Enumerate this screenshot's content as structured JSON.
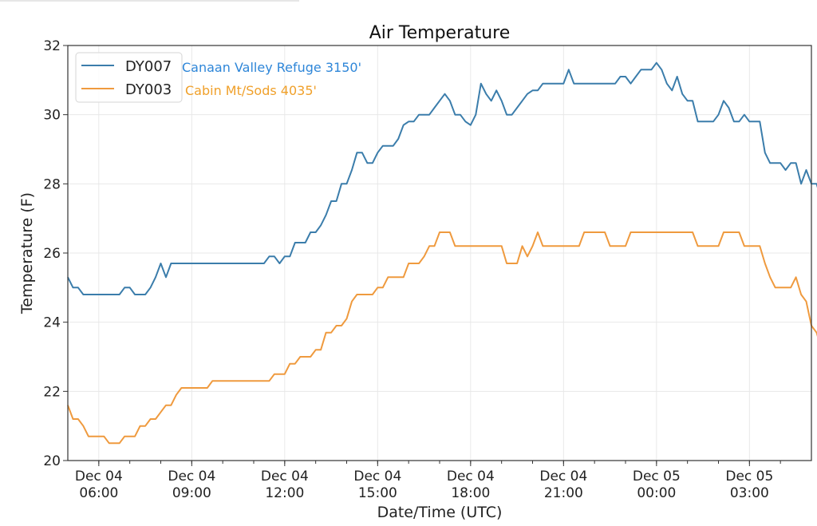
{
  "chart_data": {
    "type": "line",
    "title": "Air Temperature",
    "xlabel": "Date/Time (UTC)",
    "ylabel": "Temperature (F)",
    "ylim": [
      20,
      32
    ],
    "xlim_hours": [
      0,
      24
    ],
    "x_start": "Dec 04 05:00",
    "x_end": "Dec 05 05:00",
    "sample_interval_minutes": 10,
    "grid": true,
    "legend_placement": "top-left",
    "yticks": [
      20,
      22,
      24,
      26,
      28,
      30,
      32
    ],
    "xticks": [
      {
        "hour": 1,
        "line1": "Dec 04",
        "line2": "06:00"
      },
      {
        "hour": 4,
        "line1": "Dec 04",
        "line2": "09:00"
      },
      {
        "hour": 7,
        "line1": "Dec 04",
        "line2": "12:00"
      },
      {
        "hour": 10,
        "line1": "Dec 04",
        "line2": "15:00"
      },
      {
        "hour": 13,
        "line1": "Dec 04",
        "line2": "18:00"
      },
      {
        "hour": 16,
        "line1": "Dec 04",
        "line2": "21:00"
      },
      {
        "hour": 19,
        "line1": "Dec 05",
        "line2": "00:00"
      },
      {
        "hour": 22,
        "line1": "Dec 05",
        "line2": "03:00"
      }
    ],
    "series": [
      {
        "name": "DY007",
        "station": "Canaan Valley Refuge 3150'",
        "color": "#3b7dab",
        "label_color": "#2e86d8",
        "values": [
          25.3,
          25.0,
          25.0,
          24.8,
          24.8,
          24.8,
          24.8,
          24.8,
          24.8,
          24.8,
          24.8,
          25.0,
          25.0,
          24.8,
          24.8,
          24.8,
          25.0,
          25.3,
          25.7,
          25.3,
          25.7,
          25.7,
          25.7,
          25.7,
          25.7,
          25.7,
          25.7,
          25.7,
          25.7,
          25.7,
          25.7,
          25.7,
          25.7,
          25.7,
          25.7,
          25.7,
          25.7,
          25.7,
          25.7,
          25.9,
          25.9,
          25.7,
          25.9,
          25.9,
          26.3,
          26.3,
          26.3,
          26.6,
          26.6,
          26.8,
          27.1,
          27.5,
          27.5,
          28.0,
          28.0,
          28.4,
          28.9,
          28.9,
          28.6,
          28.6,
          28.9,
          29.1,
          29.1,
          29.1,
          29.3,
          29.7,
          29.8,
          29.8,
          30.0,
          30.0,
          30.0,
          30.2,
          30.4,
          30.6,
          30.4,
          30.0,
          30.0,
          29.8,
          29.7,
          30.0,
          30.9,
          30.6,
          30.4,
          30.7,
          30.4,
          30.0,
          30.0,
          30.2,
          30.4,
          30.6,
          30.7,
          30.7,
          30.9,
          30.9,
          30.9,
          30.9,
          30.9,
          31.3,
          30.9,
          30.9,
          30.9,
          30.9,
          30.9,
          30.9,
          30.9,
          30.9,
          30.9,
          31.1,
          31.1,
          30.9,
          31.1,
          31.3,
          31.3,
          31.3,
          31.5,
          31.3,
          30.9,
          30.7,
          31.1,
          30.6,
          30.4,
          30.4,
          29.8,
          29.8,
          29.8,
          29.8,
          30.0,
          30.4,
          30.2,
          29.8,
          29.8,
          30.0,
          29.8,
          29.8,
          29.8,
          28.9,
          28.6,
          28.6,
          28.6,
          28.4,
          28.6,
          28.6,
          28.0,
          28.4,
          28.0,
          28.0,
          27.5,
          27.5
        ]
      },
      {
        "name": "DY003",
        "station": "Cabin Mt/Sods 4035'",
        "color": "#ef9a3e",
        "label_color": "#f0a02a",
        "values": [
          21.6,
          21.2,
          21.2,
          21.0,
          20.7,
          20.7,
          20.7,
          20.7,
          20.5,
          20.5,
          20.5,
          20.7,
          20.7,
          20.7,
          21.0,
          21.0,
          21.2,
          21.2,
          21.4,
          21.6,
          21.6,
          21.9,
          22.1,
          22.1,
          22.1,
          22.1,
          22.1,
          22.1,
          22.3,
          22.3,
          22.3,
          22.3,
          22.3,
          22.3,
          22.3,
          22.3,
          22.3,
          22.3,
          22.3,
          22.3,
          22.5,
          22.5,
          22.5,
          22.8,
          22.8,
          23.0,
          23.0,
          23.0,
          23.2,
          23.2,
          23.7,
          23.7,
          23.9,
          23.9,
          24.1,
          24.6,
          24.8,
          24.8,
          24.8,
          24.8,
          25.0,
          25.0,
          25.3,
          25.3,
          25.3,
          25.3,
          25.7,
          25.7,
          25.7,
          25.9,
          26.2,
          26.2,
          26.6,
          26.6,
          26.6,
          26.2,
          26.2,
          26.2,
          26.2,
          26.2,
          26.2,
          26.2,
          26.2,
          26.2,
          26.2,
          25.7,
          25.7,
          25.7,
          26.2,
          25.9,
          26.2,
          26.6,
          26.2,
          26.2,
          26.2,
          26.2,
          26.2,
          26.2,
          26.2,
          26.2,
          26.6,
          26.6,
          26.6,
          26.6,
          26.6,
          26.2,
          26.2,
          26.2,
          26.2,
          26.6,
          26.6,
          26.6,
          26.6,
          26.6,
          26.6,
          26.6,
          26.6,
          26.6,
          26.6,
          26.6,
          26.6,
          26.6,
          26.2,
          26.2,
          26.2,
          26.2,
          26.2,
          26.6,
          26.6,
          26.6,
          26.6,
          26.2,
          26.2,
          26.2,
          26.2,
          25.7,
          25.3,
          25.0,
          25.0,
          25.0,
          25.0,
          25.3,
          24.8,
          24.6,
          23.9,
          23.7,
          23.2,
          23.0
        ]
      }
    ]
  }
}
